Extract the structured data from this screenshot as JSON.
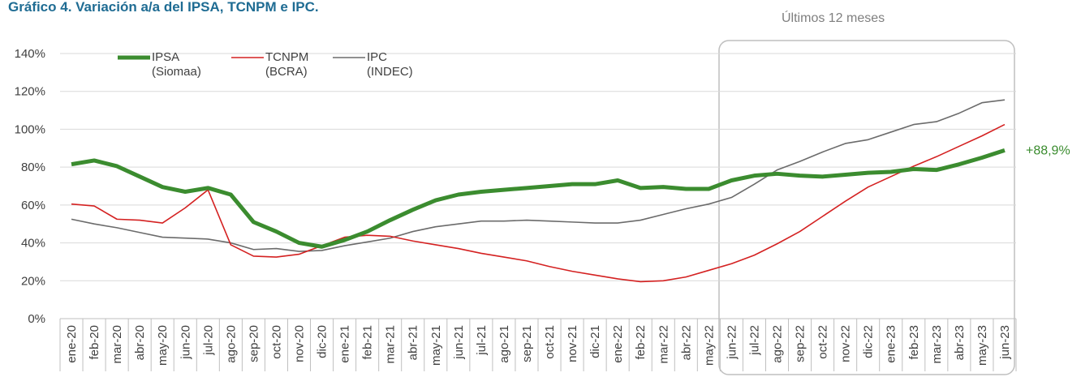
{
  "chart_data": {
    "type": "line",
    "title": "Gráfico 4. Variación a/a del IPSA, TCNPM e IPC.",
    "annotation": "Últimos 12 meses",
    "categories": [
      "ene-20",
      "feb-20",
      "mar-20",
      "abr-20",
      "may-20",
      "jun-20",
      "jul-20",
      "ago-20",
      "sep-20",
      "oct-20",
      "nov-20",
      "dic-20",
      "ene-21",
      "feb-21",
      "mar-21",
      "abr-21",
      "may-21",
      "jun-21",
      "jul-21",
      "ago-21",
      "sep-21",
      "oct-21",
      "nov-21",
      "dic-21",
      "ene-22",
      "feb-22",
      "mar-22",
      "abr-22",
      "may-22",
      "jun-22",
      "jul-22",
      "ago-22",
      "sep-22",
      "oct-22",
      "nov-22",
      "dic-22",
      "ene-23",
      "feb-23",
      "mar-23",
      "abr-23",
      "may-23",
      "jun-23"
    ],
    "series": [
      {
        "name": "IPSA (Siomaa)",
        "color": "#3b8c2f",
        "width": 5,
        "values": [
          81.5,
          83.5,
          80.5,
          75,
          69.5,
          67,
          69,
          65.5,
          51,
          46,
          40,
          38,
          41.5,
          46,
          52,
          57.5,
          62.5,
          65.5,
          67,
          68,
          69,
          70,
          71,
          71,
          73,
          69,
          69.5,
          68.5,
          68.5,
          73,
          75.5,
          76.5,
          75.5,
          75,
          76,
          77,
          77.5,
          79,
          78.5,
          81.5,
          85,
          88.9
        ],
        "value_labels": [
          null,
          null,
          null,
          null,
          null,
          null,
          null,
          null,
          null,
          null,
          null,
          null,
          null,
          null,
          null,
          null,
          null,
          null,
          null,
          null,
          null,
          null,
          null,
          null,
          null,
          null,
          null,
          null,
          null,
          null,
          null,
          null,
          null,
          null,
          null,
          null,
          null,
          null,
          null,
          null,
          null,
          "+88,9%"
        ]
      },
      {
        "name": "TCNPM (BCRA)",
        "color": "#d42121",
        "width": 1.6,
        "values": [
          60.5,
          59.5,
          52.5,
          52,
          50.5,
          58.5,
          68,
          39,
          33,
          32.5,
          34,
          38.5,
          43,
          44,
          43.5,
          41,
          39,
          37,
          34.5,
          32.5,
          30.5,
          27.5,
          25,
          23,
          21,
          19.5,
          20,
          22,
          25.5,
          29,
          33.5,
          39.5,
          46,
          54,
          62,
          69.5,
          75,
          80.5,
          85.5,
          91,
          96.5,
          102.5
        ]
      },
      {
        "name": "IPC (INDEC)",
        "color": "#6b6b6b",
        "width": 1.6,
        "values": [
          52.5,
          50,
          48,
          45.5,
          43,
          42.5,
          42,
          40,
          36.5,
          37,
          35.5,
          36,
          38.5,
          40.5,
          42.5,
          46,
          48.5,
          50,
          51.5,
          51.5,
          52,
          51.5,
          51,
          50.5,
          50.5,
          52,
          55,
          58,
          60.5,
          64,
          71,
          78.5,
          83,
          88,
          92.5,
          94.5,
          98.5,
          102.5,
          104,
          108.5,
          114,
          115.5
        ]
      }
    ],
    "ylim": [
      0,
      140
    ],
    "yticks": [
      {
        "value": 0,
        "label": "0%"
      },
      {
        "value": 20,
        "label": "20%"
      },
      {
        "value": 40,
        "label": "40%"
      },
      {
        "value": 60,
        "label": "60%"
      },
      {
        "value": 80,
        "label": "80%"
      },
      {
        "value": 100,
        "label": "100%"
      },
      {
        "value": 120,
        "label": "120%"
      },
      {
        "value": 140,
        "label": "140%"
      }
    ],
    "grid": true
  }
}
